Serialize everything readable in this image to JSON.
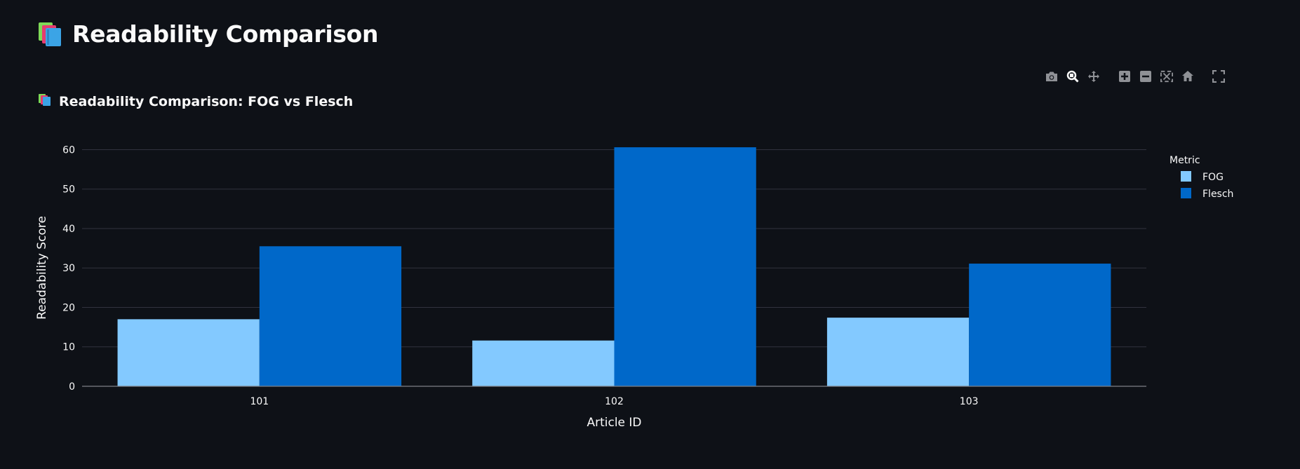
{
  "page": {
    "title": "Readability Comparison",
    "title_icon": "books-icon"
  },
  "modebar": {
    "buttons": [
      "camera-icon",
      "zoom-icon",
      "pan-icon",
      "zoom-in-icon",
      "zoom-out-icon",
      "autoscale-icon",
      "reset-axes-icon",
      "fullscreen-icon"
    ]
  },
  "chart_data": {
    "type": "bar",
    "title": "Readability Comparison: FOG vs Flesch",
    "title_icon": "books-icon",
    "categories": [
      "101",
      "102",
      "103"
    ],
    "series": [
      {
        "name": "FOG",
        "values": [
          17.0,
          11.6,
          17.4
        ],
        "color": "#83c9ff"
      },
      {
        "name": "Flesch",
        "values": [
          35.5,
          60.6,
          31.1
        ],
        "color": "#0068c9"
      }
    ],
    "xlabel": "Article ID",
    "ylabel": "Readability Score",
    "ylim": [
      0,
      61.5
    ],
    "yticks": [
      0,
      10,
      20,
      30,
      40,
      50,
      60
    ],
    "grid": true,
    "legend_title": "Metric",
    "legend_position": "top-right",
    "barmode": "group",
    "colors": {
      "background": "#0e1117",
      "grid": "#31333f",
      "axis_line": "#7f8187",
      "text": "#fafafa",
      "modebar_icon": "#8f9196",
      "modebar_icon_active": "#fafafa"
    }
  }
}
